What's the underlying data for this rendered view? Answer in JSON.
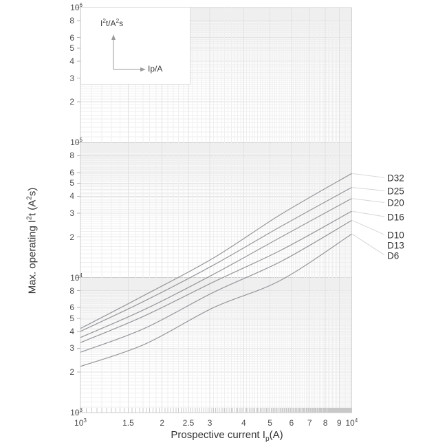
{
  "chart_data": {
    "type": "line",
    "title": "",
    "x_axis": {
      "title": "Prospective current Ip(A)",
      "title_rich": [
        {
          "t": "Prospective current I"
        },
        {
          "sub": "p"
        },
        {
          "t": "(A)"
        }
      ],
      "scale": "log",
      "min": 1000,
      "max": 10000,
      "ticks": [
        {
          "v": 1000,
          "base": "10",
          "exp": "3"
        },
        {
          "v": 1500,
          "label": "1.5"
        },
        {
          "v": 2000,
          "label": "2"
        },
        {
          "v": 2500,
          "label": "2.5"
        },
        {
          "v": 3000,
          "label": "3"
        },
        {
          "v": 4000,
          "label": "4"
        },
        {
          "v": 5000,
          "label": "5"
        },
        {
          "v": 6000,
          "label": "6"
        },
        {
          "v": 7000,
          "label": "7"
        },
        {
          "v": 8000,
          "label": "8"
        },
        {
          "v": 9000,
          "label": "9"
        },
        {
          "v": 10000,
          "base": "10",
          "exp": "4"
        }
      ]
    },
    "y_axis": {
      "title": "Max. operating I2t (A2s)",
      "title_rich": [
        {
          "t": "Max. operating I"
        },
        {
          "sup": "2"
        },
        {
          "t": "t (A"
        },
        {
          "sup": "2"
        },
        {
          "t": "s)"
        }
      ],
      "scale": "log",
      "min": 1000,
      "max": 1000000,
      "decade_ticks": [
        {
          "v": 1000,
          "base": "10",
          "exp": "3"
        },
        {
          "v": 10000,
          "base": "10",
          "exp": "4"
        },
        {
          "v": 100000,
          "base": "10",
          "exp": "5"
        },
        {
          "v": 1000000,
          "base": "10",
          "exp": "6"
        }
      ],
      "minor_tick_digits": [
        2,
        3,
        4,
        5,
        6,
        8
      ],
      "minor_tick_decades": [
        1000,
        10000,
        100000
      ]
    },
    "grid": "log-log fine grid on",
    "series": [
      {
        "name": "D32",
        "points": [
          [
            1000,
            4200
          ],
          [
            1720,
            7400
          ],
          [
            3100,
            14000
          ],
          [
            5500,
            29500
          ],
          [
            10000,
            59000
          ]
        ]
      },
      {
        "name": "D25",
        "points": [
          [
            1000,
            4000
          ],
          [
            1720,
            6700
          ],
          [
            3100,
            12400
          ],
          [
            5500,
            24000
          ],
          [
            10000,
            46500
          ]
        ]
      },
      {
        "name": "D20",
        "points": [
          [
            1000,
            3600
          ],
          [
            1720,
            5800
          ],
          [
            3100,
            10600
          ],
          [
            5500,
            20000
          ],
          [
            10000,
            38500
          ]
        ]
      },
      {
        "name": "D16",
        "points": [
          [
            1000,
            3300
          ],
          [
            1720,
            5200
          ],
          [
            3100,
            9300
          ],
          [
            5500,
            16000
          ],
          [
            10000,
            31000
          ]
        ]
      },
      {
        "name": "D10",
        "points": [
          [
            1000,
            2800
          ],
          [
            1720,
            4200
          ],
          [
            3100,
            7800
          ],
          [
            5500,
            13200
          ],
          [
            10000,
            26500
          ]
        ]
      },
      {
        "name": "D6",
        "points": [
          [
            1000,
            2200
          ],
          [
            1720,
            3200
          ],
          [
            3100,
            6000
          ],
          [
            5500,
            9600
          ],
          [
            10000,
            21000
          ]
        ]
      }
    ],
    "right_labels": [
      {
        "text": "D32",
        "value": 55000,
        "series": 0,
        "leader": true
      },
      {
        "text": "D25",
        "value": 44000,
        "series": 1,
        "leader": true
      },
      {
        "text": "D20",
        "value": 36000,
        "series": 2,
        "leader": true
      },
      {
        "text": "D16",
        "value": 28300,
        "series": 3,
        "leader": true
      },
      {
        "text": "D10",
        "value": 20800,
        "series": 4,
        "leader": true
      },
      {
        "text": "D13",
        "value": 17500,
        "series": 4,
        "leader": false
      },
      {
        "text": "D6",
        "value": 14700,
        "series": 5,
        "leader": true
      }
    ],
    "inset": {
      "y_unit": "I2t/A2s",
      "y_unit_rich": [
        {
          "t": "I"
        },
        {
          "sup": "2"
        },
        {
          "t": "t/A"
        },
        {
          "sup": "2"
        },
        {
          "t": "s"
        }
      ],
      "x_unit": "Ip/A",
      "x_unit_rich": [
        {
          "t": "Ip/A"
        }
      ]
    },
    "colors": {
      "curve": "#94979b",
      "leader": "#d7d7d7",
      "grid_minor": "#efefef",
      "grid_major": "#e1e1e1",
      "grid_decade": "#cdcdcd",
      "comb": "#c8c8c8",
      "axis_tick": "#b5b5b5",
      "tick_text": "#4d4d4d",
      "title_text": "#333333",
      "inset_arrow": "#9a9a9a"
    }
  }
}
